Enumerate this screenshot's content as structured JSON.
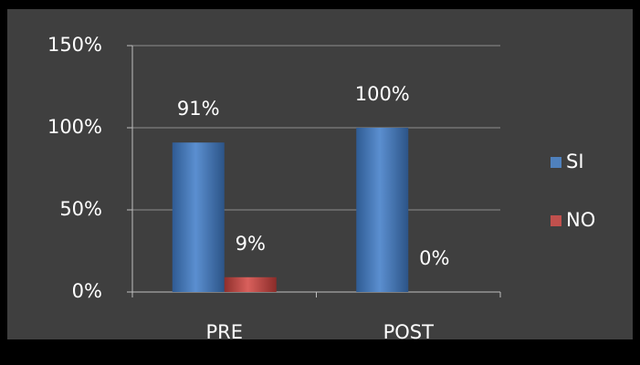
{
  "chart_data": {
    "type": "bar",
    "categories": [
      "PRE",
      "POST"
    ],
    "series": [
      {
        "name": "SI",
        "color": "#4f81bd",
        "values": [
          91,
          100
        ],
        "value_labels": [
          "91%",
          "100%"
        ]
      },
      {
        "name": "NO",
        "color": "#c0504d",
        "values": [
          9,
          0
        ],
        "value_labels": [
          "9%",
          "0%"
        ]
      }
    ],
    "ylim": [
      0,
      150
    ],
    "yticks": [
      {
        "value": 0,
        "label": "0%"
      },
      {
        "value": 50,
        "label": "50%"
      },
      {
        "value": 100,
        "label": "100%"
      },
      {
        "value": 150,
        "label": "150%"
      }
    ],
    "grid": true,
    "legend": "right"
  }
}
